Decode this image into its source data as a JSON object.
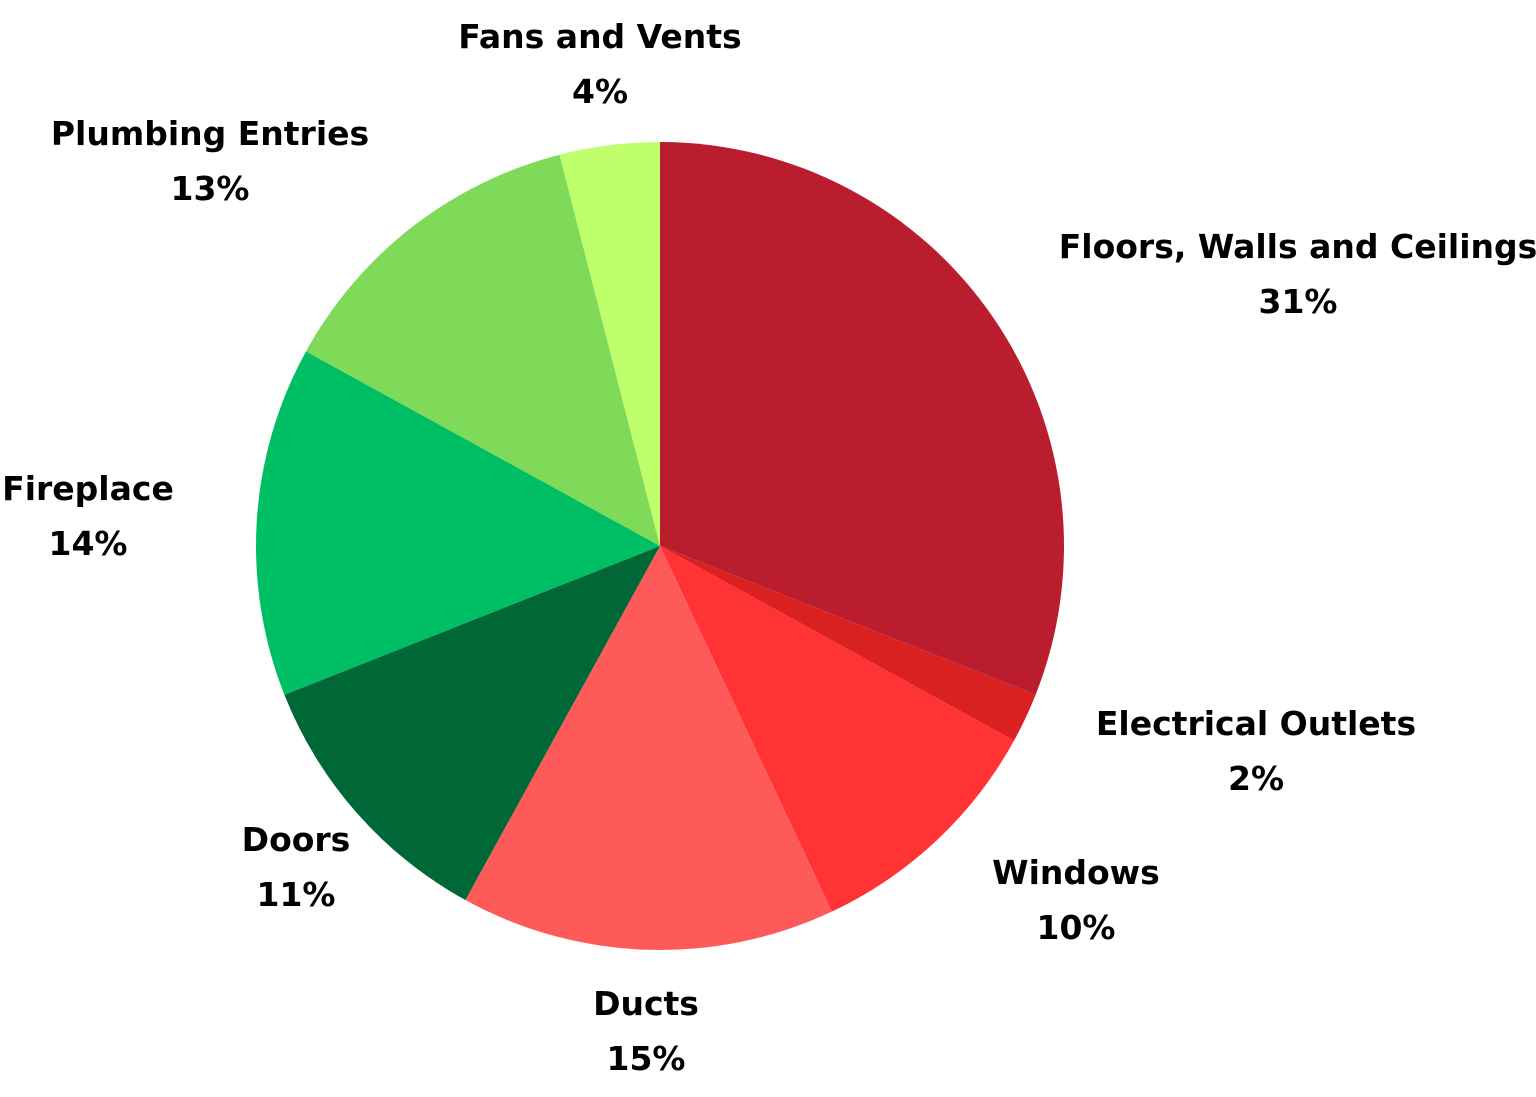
{
  "chart_data": {
    "type": "pie",
    "title": "",
    "slices": [
      {
        "label": "Floors, Walls and Ceilings",
        "pct_label": "31%",
        "value": 31,
        "color": "#BA1E2E"
      },
      {
        "label": "Electrical Outlets",
        "pct_label": "2%",
        "value": 2,
        "color": "#DA2122"
      },
      {
        "label": "Windows",
        "pct_label": "10%",
        "value": 10,
        "color": "#FF3333"
      },
      {
        "label": "Ducts",
        "pct_label": "15%",
        "value": 15,
        "color": "#FF5A5A"
      },
      {
        "label": "Doors",
        "pct_label": "11%",
        "value": 11,
        "color": "#006837"
      },
      {
        "label": "Fireplace",
        "pct_label": "14%",
        "value": 14,
        "color": "#00BE63"
      },
      {
        "label": "Plumbing Entries",
        "pct_label": "13%",
        "value": 13,
        "color": "#80DA5A"
      },
      {
        "label": "Fans and Vents",
        "pct_label": "4%",
        "value": 4,
        "color": "#BEFF6B"
      }
    ],
    "start_angle": "top",
    "direction": "clockwise",
    "legend": "none"
  }
}
